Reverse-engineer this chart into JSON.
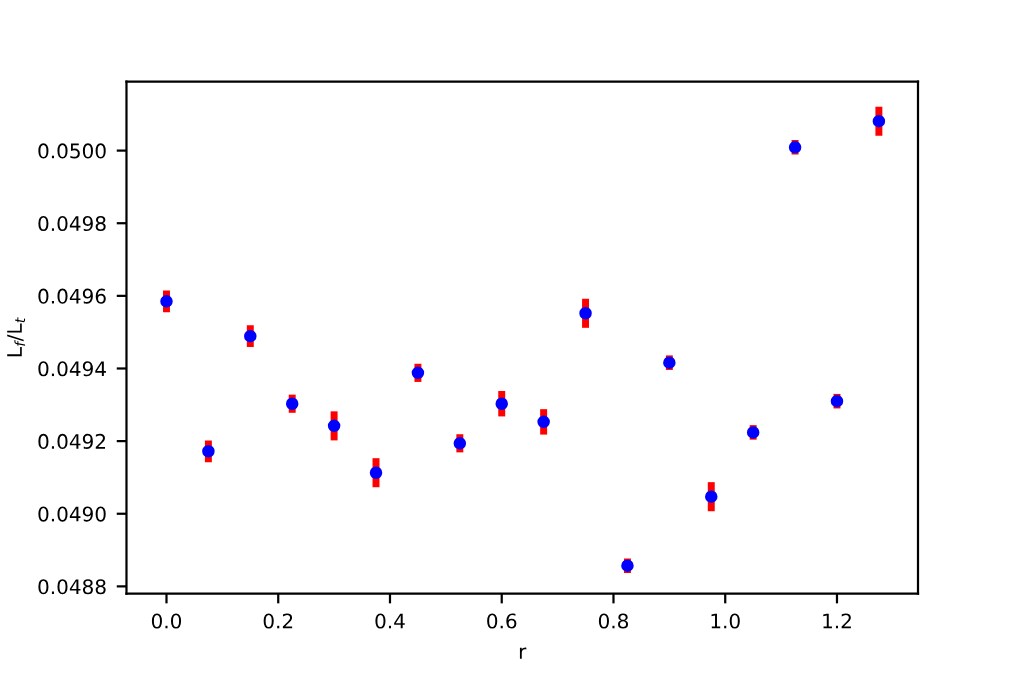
{
  "chart_data": {
    "type": "scatter",
    "xlabel": "r",
    "ylabel": "L$_{f}$/L$_{t}$",
    "x": [
      0,
      0.075,
      0.15,
      0.225,
      0.3,
      0.375,
      0.45,
      0.525,
      0.6,
      0.675,
      0.75,
      0.825,
      0.9,
      0.975,
      1.05,
      1.125,
      1.2,
      1.275
    ],
    "series": [
      {
        "color": "#0000ff",
        "values": [
          0.049585,
          0.049172,
          0.049489,
          0.049303,
          0.049242,
          0.049113,
          0.049388,
          0.049194,
          0.049303,
          0.049253,
          0.049552,
          0.048857,
          0.049416,
          0.049047,
          0.049224,
          0.050009,
          0.04931,
          0.050081
        ],
        "errors": [
          3e-05,
          3e-05,
          3e-05,
          2.5e-05,
          4e-05,
          4e-05,
          2.5e-05,
          2.5e-05,
          3.5e-05,
          3.5e-05,
          4e-05,
          2e-05,
          2e-05,
          4e-05,
          2e-05,
          2e-05,
          2e-05,
          4e-05
        ]
      }
    ],
    "xlim": [
      -0.0716,
      1.345
    ],
    "ylim": [
      0.04878,
      0.05019
    ],
    "xticks": [
      {
        "value": 0,
        "label": "0.0"
      },
      0.2,
      0.4,
      0.6,
      0.8,
      {
        "value": 1,
        "label": "1.0"
      },
      1.2
    ],
    "yticks": [
      {
        "value": 0.0488,
        "label": "0.0488"
      },
      {
        "value": 0.049,
        "label": "0.0490"
      },
      {
        "value": 0.0492,
        "label": "0.0492"
      },
      {
        "value": 0.0494,
        "label": "0.0494"
      },
      {
        "value": 0.0496,
        "label": "0.0496"
      },
      {
        "value": 0.0498,
        "label": "0.0498"
      },
      {
        "value": 0.05,
        "label": "0.0500"
      }
    ],
    "marker": "circle",
    "grid": false,
    "legend": false
  }
}
